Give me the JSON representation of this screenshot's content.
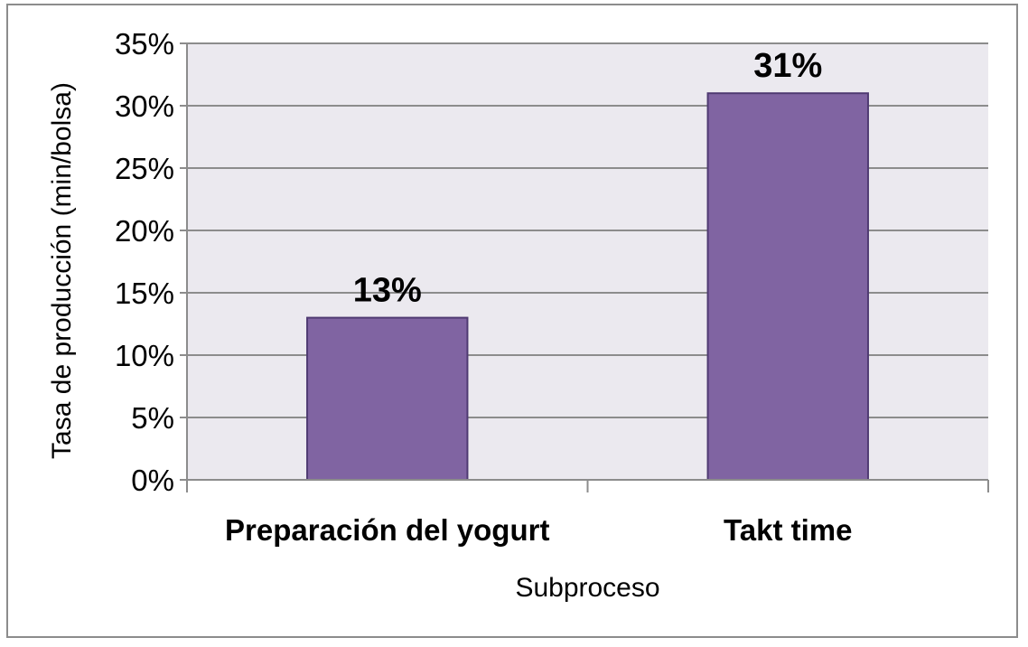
{
  "chart_data": {
    "type": "bar",
    "categories": [
      "Preparación del yogurt",
      "Takt time"
    ],
    "values": [
      13,
      31
    ],
    "data_labels": [
      "13%",
      "31%"
    ],
    "title": "",
    "xlabel": "Subproceso",
    "ylabel": "Tasa de producción (min/bolsa)",
    "ylim": [
      0,
      35
    ],
    "y_ticks": [
      0,
      5,
      10,
      15,
      20,
      25,
      30,
      35
    ],
    "y_tick_labels": [
      "0%",
      "5%",
      "10%",
      "15%",
      "20%",
      "25%",
      "30%",
      "35%"
    ],
    "grid": true,
    "legend": "none",
    "colors": {
      "bar_fill": "#8064a2",
      "bar_stroke": "#4f3a72",
      "plot_background": "#ebe9ef",
      "gridline": "#8c8c8c",
      "frame": "#8c8c8c"
    }
  }
}
